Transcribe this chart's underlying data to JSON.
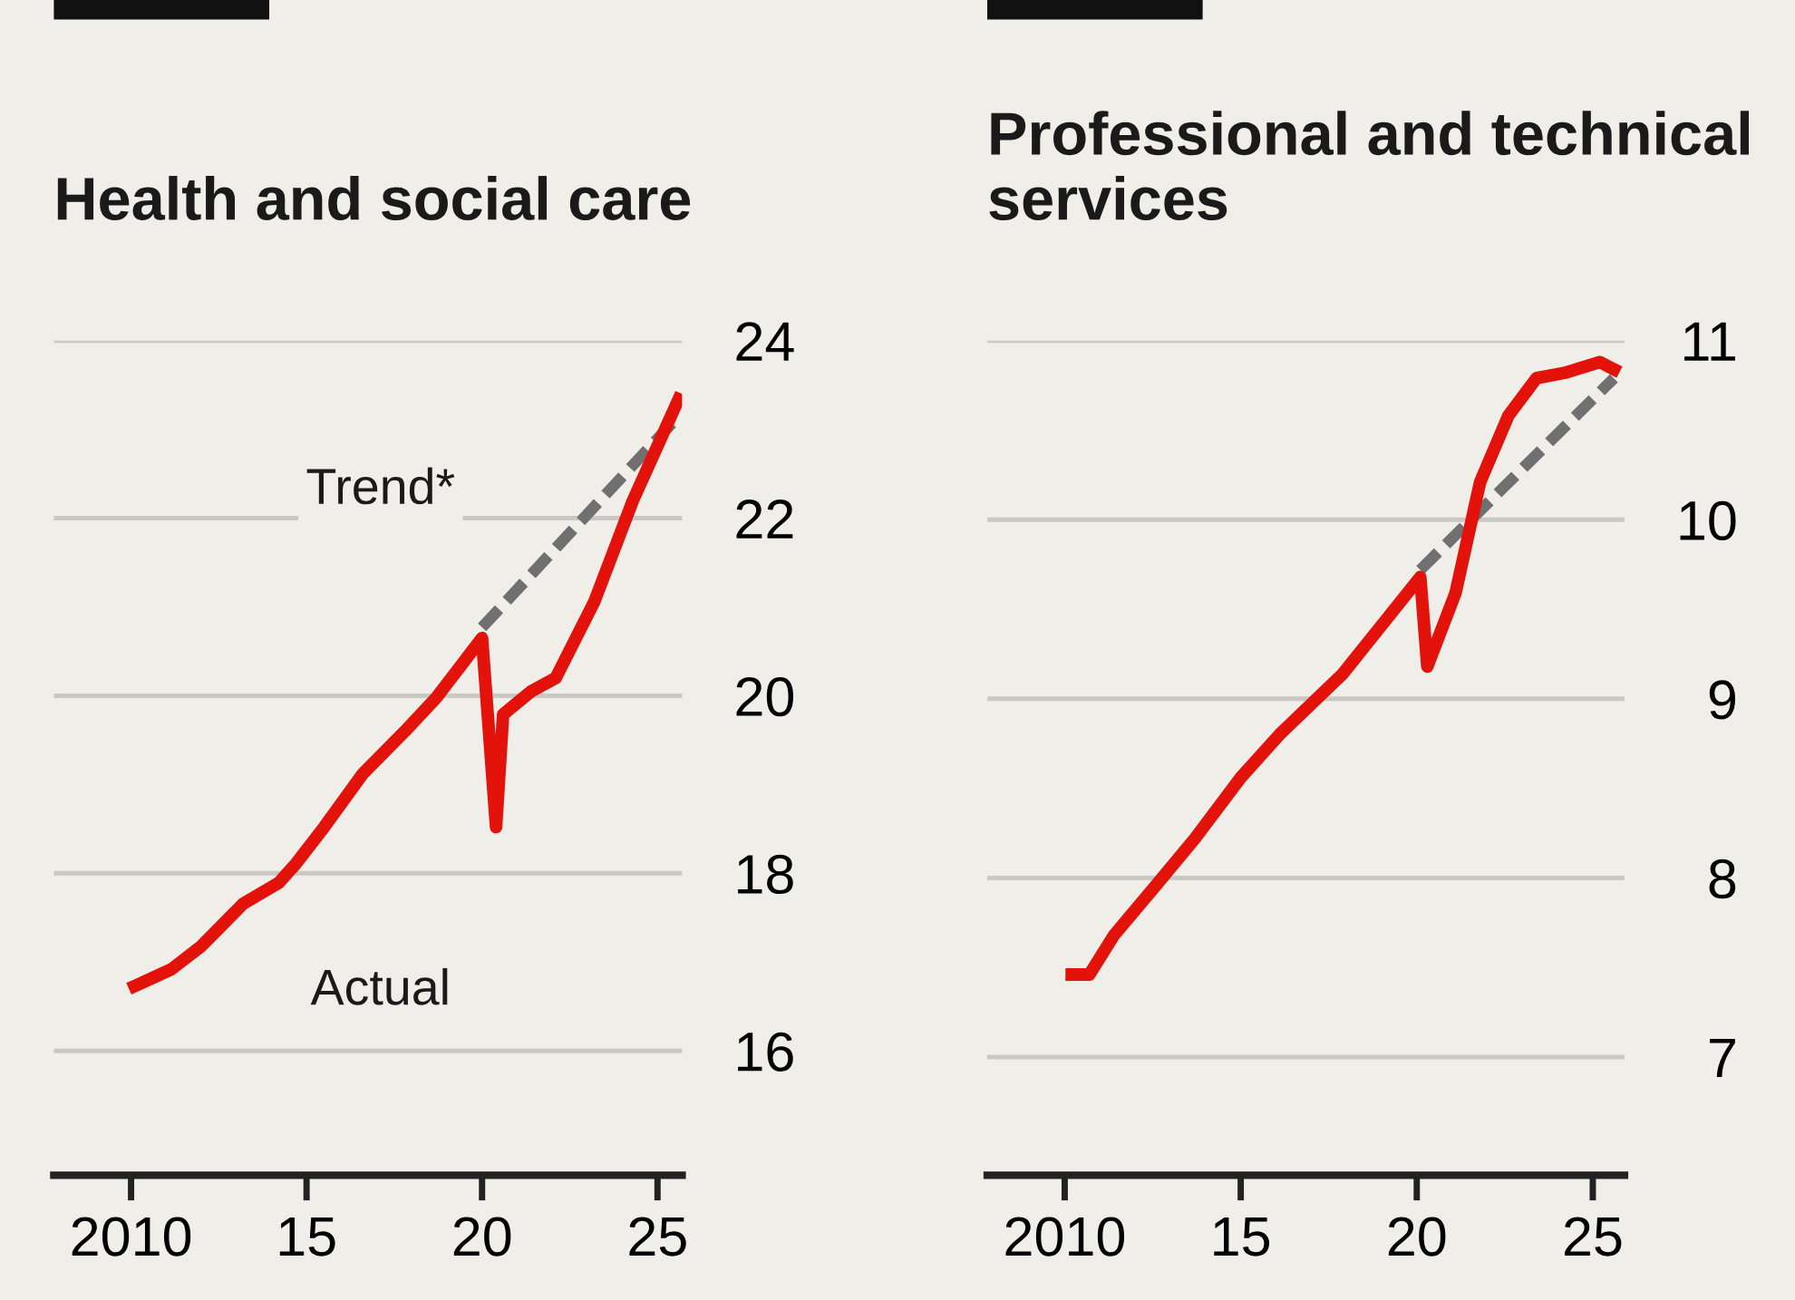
{
  "chart_data": [
    {
      "type": "line",
      "title": "Health and social care",
      "xlim": [
        2007.8,
        2025.7
      ],
      "xticks": [
        2010,
        {
          "value": 2015,
          "label": "15"
        },
        {
          "value": 2020,
          "label": "20"
        },
        {
          "value": 2025,
          "label": "25"
        }
      ],
      "ylim": [
        14.6,
        24
      ],
      "yticks": [
        16,
        18,
        20,
        22,
        24
      ],
      "grid": "y",
      "line_style": "solid",
      "series": [
        {
          "color": "#e3120b",
          "x": [
            2010.1,
            2011.15,
            2012.0,
            2013.2,
            2014.2,
            2014.7,
            2015.5,
            2016.6,
            2017.8,
            2018.7,
            2020.0,
            2020.4,
            2020.6,
            2021.4,
            2022.1,
            2023.2,
            2024.3,
            2025.6
          ],
          "values": [
            16.73,
            16.92,
            17.18,
            17.66,
            17.89,
            18.11,
            18.52,
            19.12,
            19.6,
            19.98,
            20.65,
            18.52,
            19.79,
            20.05,
            20.2,
            21.06,
            22.2,
            23.34
          ]
        },
        {
          "color": "#707070",
          "line_style": "dashed",
          "x": [
            2020.0,
            2025.6
          ],
          "values": [
            20.77,
            23.15
          ]
        }
      ],
      "annotations": [
        "Trend*",
        "Actual"
      ]
    },
    {
      "type": "line",
      "title": "Professional and technical services",
      "xlim": [
        2007.8,
        2025.9
      ],
      "xticks": [
        2010,
        {
          "value": 2015,
          "label": "15"
        },
        {
          "value": 2020,
          "label": "20"
        },
        {
          "value": 2025,
          "label": "25"
        }
      ],
      "ylim": [
        6.34,
        11
      ],
      "yticks": [
        7,
        8,
        9,
        10,
        11
      ],
      "grid": "y",
      "line_style": "solid",
      "series": [
        {
          "color": "#e3120b",
          "x": [
            2010.2,
            2010.7,
            2011.4,
            2012.6,
            2013.7,
            2015.0,
            2016.1,
            2017.9,
            2020.1,
            2020.3,
            2021.1,
            2021.8,
            2022.6,
            2023.4,
            2024.2,
            2025.2,
            2025.6
          ],
          "values": [
            7.46,
            7.46,
            7.68,
            7.96,
            8.22,
            8.56,
            8.8,
            9.14,
            9.68,
            9.18,
            9.59,
            10.21,
            10.58,
            10.79,
            10.82,
            10.88,
            10.84
          ]
        },
        {
          "color": "#707070",
          "line_style": "dashed",
          "x": [
            2020.1,
            2025.6
          ],
          "values": [
            9.72,
            10.79
          ]
        }
      ]
    }
  ]
}
